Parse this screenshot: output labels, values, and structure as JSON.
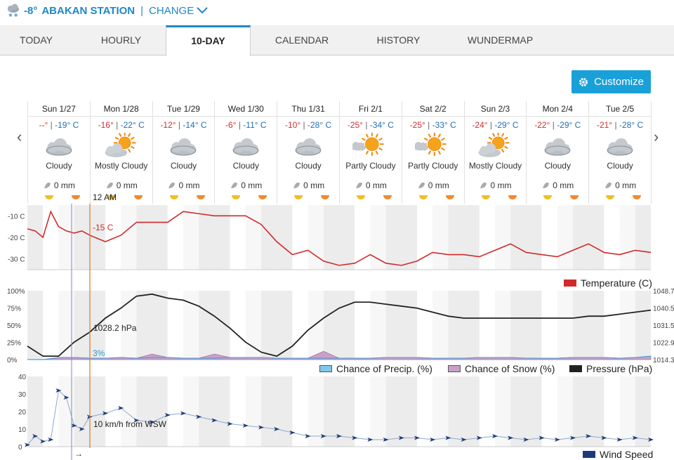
{
  "header": {
    "current_temp": "-8°",
    "station_name": "ABAKAN STATION",
    "separator": "|",
    "change_label": "CHANGE",
    "icon": "cloud-snow-icon"
  },
  "tabs": [
    {
      "label": "TODAY",
      "active": false
    },
    {
      "label": "HOURLY",
      "active": false
    },
    {
      "label": "10-DAY",
      "active": true
    },
    {
      "label": "CALENDAR",
      "active": false
    },
    {
      "label": "HISTORY",
      "active": false
    },
    {
      "label": "WUNDERMAP",
      "active": false
    }
  ],
  "customize_label": "Customize",
  "days": [
    {
      "date": "Sun 1/27",
      "hi": "--°",
      "lo": "-19° C",
      "cond": "Cloudy",
      "icon": "cloudy",
      "precip": "0 mm"
    },
    {
      "date": "Mon 1/28",
      "hi": "-16°",
      "lo": "-22° C",
      "cond": "Mostly Cloudy",
      "icon": "mostly-cloudy",
      "precip": "0 mm"
    },
    {
      "date": "Tue 1/29",
      "hi": "-12°",
      "lo": "-14° C",
      "cond": "Cloudy",
      "icon": "cloudy",
      "precip": "0 mm"
    },
    {
      "date": "Wed 1/30",
      "hi": "-6°",
      "lo": "-11° C",
      "cond": "Cloudy",
      "icon": "cloudy",
      "precip": "0 mm"
    },
    {
      "date": "Thu 1/31",
      "hi": "-10°",
      "lo": "-28° C",
      "cond": "Cloudy",
      "icon": "cloudy",
      "precip": "0 mm"
    },
    {
      "date": "Fri 2/1",
      "hi": "-25°",
      "lo": "-34° C",
      "cond": "Partly Cloudy",
      "icon": "partly-cloudy",
      "precip": "0 mm"
    },
    {
      "date": "Sat 2/2",
      "hi": "-25°",
      "lo": "-33° C",
      "cond": "Partly Cloudy",
      "icon": "partly-cloudy",
      "precip": "0 mm"
    },
    {
      "date": "Sun 2/3",
      "hi": "-24°",
      "lo": "-29° C",
      "cond": "Mostly Cloudy",
      "icon": "mostly-cloudy",
      "precip": "0 mm"
    },
    {
      "date": "Mon 2/4",
      "hi": "-22°",
      "lo": "-29° C",
      "cond": "Cloudy",
      "icon": "cloudy",
      "precip": "0 mm"
    },
    {
      "date": "Tue 2/5",
      "hi": "-21°",
      "lo": "-28° C",
      "cond": "Cloudy",
      "icon": "cloudy",
      "precip": "0 mm"
    }
  ],
  "cursor": {
    "time_label": "12 AM",
    "temp_label": "-15 C",
    "pressure_label": "1028.2 hPa",
    "precip_label": "3%",
    "wind_label": "10 km/h from WSW",
    "wind_dir_glyph": "→"
  },
  "legends": {
    "temperature": "Temperature (C)",
    "precip": "Chance of Precip. (%)",
    "snow": "Chance of Snow (%)",
    "pressure": "Pressure (hPa)",
    "wind": "Wind Speed"
  },
  "colors": {
    "accent": "#1e88c7",
    "temperature": "#d02a2a",
    "precip": "#7fc8e8",
    "snow": "#c9a0c8",
    "pressure": "#222222",
    "wind": "#1c3a78",
    "cursor": "#e07820"
  },
  "chart_data": [
    {
      "type": "line",
      "title": "",
      "series": [
        {
          "name": "Temperature (C)",
          "x": [
            0,
            3,
            6,
            9,
            12,
            15,
            18,
            21,
            24,
            30,
            36,
            42,
            48,
            54,
            60,
            66,
            72,
            78,
            84,
            90,
            96,
            102,
            108,
            114,
            120,
            126,
            132,
            138,
            144,
            150,
            156,
            162,
            168,
            174,
            180,
            186,
            192,
            198,
            204,
            210,
            216,
            222,
            228,
            234,
            240
          ],
          "values": [
            -16,
            -17,
            -20,
            -8,
            -15,
            -17,
            -18,
            -17,
            -19,
            -22,
            -19,
            -13,
            -13,
            -13,
            -8,
            -9,
            -10,
            -10,
            -10,
            -14,
            -22,
            -28,
            -26,
            -31,
            -33,
            -32,
            -28,
            -32,
            -33,
            -31,
            -27,
            -28,
            -28,
            -29,
            -26,
            -23,
            -27,
            -28,
            -29,
            -26,
            -23,
            -27,
            -28,
            -26,
            -27
          ]
        }
      ],
      "y_ticks": [
        "-10 C",
        "-20 C",
        "-30 C"
      ]
    },
    {
      "type": "line",
      "series": [
        {
          "name": "Pressure (hPa)",
          "x": [
            0,
            6,
            12,
            18,
            24,
            30,
            36,
            42,
            48,
            54,
            60,
            66,
            72,
            78,
            84,
            90,
            96,
            102,
            108,
            114,
            120,
            126,
            132,
            138,
            144,
            150,
            156,
            162,
            168,
            174,
            180,
            186,
            192,
            198,
            204,
            210,
            216,
            222,
            228,
            234,
            240
          ],
          "values": [
            1021,
            1016,
            1016,
            1023,
            1028,
            1035,
            1040,
            1046,
            1047,
            1045,
            1044,
            1041,
            1036,
            1030,
            1023,
            1018,
            1016,
            1021,
            1029,
            1035,
            1040,
            1043,
            1043,
            1042,
            1041,
            1040,
            1038,
            1036,
            1035,
            1035,
            1035,
            1035,
            1035,
            1035,
            1035,
            1035,
            1036,
            1036,
            1037,
            1038,
            1039
          ]
        },
        {
          "name": "Chance of Precip. (%)",
          "values": [
            0,
            0,
            3,
            3,
            2,
            2,
            3,
            2,
            3,
            3,
            2,
            2,
            2,
            3,
            3,
            3,
            2,
            2,
            2,
            2,
            2,
            2,
            2,
            3,
            3,
            3,
            2,
            2,
            2,
            3,
            3,
            3,
            2,
            2,
            2,
            3,
            3,
            3,
            2,
            3,
            5
          ]
        },
        {
          "name": "Chance of Snow (%)",
          "values": [
            0,
            0,
            3,
            3,
            2,
            2,
            3,
            2,
            8,
            3,
            2,
            2,
            8,
            3,
            3,
            3,
            2,
            2,
            2,
            12,
            2,
            2,
            2,
            3,
            3,
            3,
            2,
            2,
            2,
            3,
            3,
            3,
            2,
            2,
            2,
            3,
            3,
            3,
            2,
            3,
            5
          ]
        }
      ],
      "y_ticks": [
        "100%",
        "75%",
        "50%",
        "25%",
        "0%"
      ],
      "y2_ticks": [
        "1048.7",
        "1040.5",
        "1031.5",
        "1022.9",
        "1014.3"
      ]
    },
    {
      "type": "line",
      "series": [
        {
          "name": "Wind Speed",
          "x": [
            0,
            3,
            6,
            9,
            12,
            15,
            18,
            21,
            24,
            30,
            36,
            42,
            48,
            54,
            60,
            66,
            72,
            78,
            84,
            90,
            96,
            102,
            108,
            114,
            120,
            126,
            132,
            138,
            144,
            150,
            156,
            162,
            168,
            174,
            180,
            186,
            192,
            198,
            204,
            210,
            216,
            222,
            228,
            234,
            240
          ],
          "values": [
            1,
            6,
            3,
            4,
            32,
            28,
            12,
            10,
            17,
            19,
            22,
            15,
            14,
            18,
            19,
            17,
            15,
            13,
            12,
            11,
            10,
            8,
            6,
            6,
            6,
            5,
            4,
            4,
            5,
            5,
            4,
            5,
            4,
            5,
            6,
            5,
            4,
            5,
            4,
            5,
            6,
            5,
            4,
            5,
            4
          ]
        }
      ],
      "y_ticks": [
        "40",
        "30",
        "20",
        "10",
        "0"
      ]
    }
  ]
}
